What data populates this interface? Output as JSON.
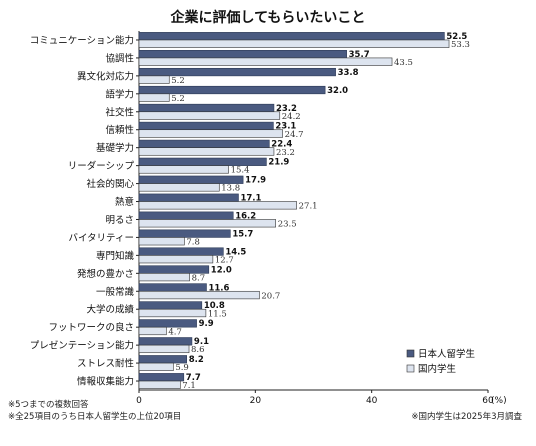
{
  "chart_data": {
    "type": "bar",
    "orientation": "horizontal",
    "title": "企業に評価してもらいたいこと",
    "categories": [
      "コミュニケーション能力",
      "協調性",
      "異文化対応力",
      "語学力",
      "社交性",
      "信頼性",
      "基礎学力",
      "リーダーシップ",
      "社会的関心",
      "熱意",
      "明るさ",
      "バイタリティー",
      "専門知識",
      "発想の豊かさ",
      "一般常識",
      "大学の成績",
      "フットワークの良さ",
      "プレゼンテーション能力",
      "ストレス耐性",
      "情報収集能力"
    ],
    "series": [
      {
        "name": "日本人留学生",
        "color": "#4a5a80",
        "values": [
          52.5,
          35.7,
          33.8,
          32.0,
          23.2,
          23.1,
          22.4,
          21.9,
          17.9,
          17.1,
          16.2,
          15.7,
          14.5,
          12.0,
          11.6,
          10.8,
          9.9,
          9.1,
          8.2,
          7.7
        ]
      },
      {
        "name": "国内学生",
        "color": "#dde4ef",
        "values": [
          53.3,
          43.5,
          5.2,
          5.2,
          24.2,
          24.7,
          23.2,
          15.4,
          13.8,
          27.1,
          23.5,
          7.8,
          12.7,
          8.7,
          20.7,
          11.5,
          4.7,
          8.6,
          5.9,
          7.1
        ]
      }
    ],
    "xlim": [
      0,
      60
    ],
    "xticks": [
      "0",
      "20",
      "40",
      "60"
    ],
    "unit_label": "(%)",
    "grid": false,
    "legend_position": "bottom-right"
  },
  "notes": {
    "left_1": "※5つまでの複数回答",
    "left_2": "※全25項目のうち日本人留学生の上位20項目",
    "right": "※国内学生は2025年3月調査"
  }
}
